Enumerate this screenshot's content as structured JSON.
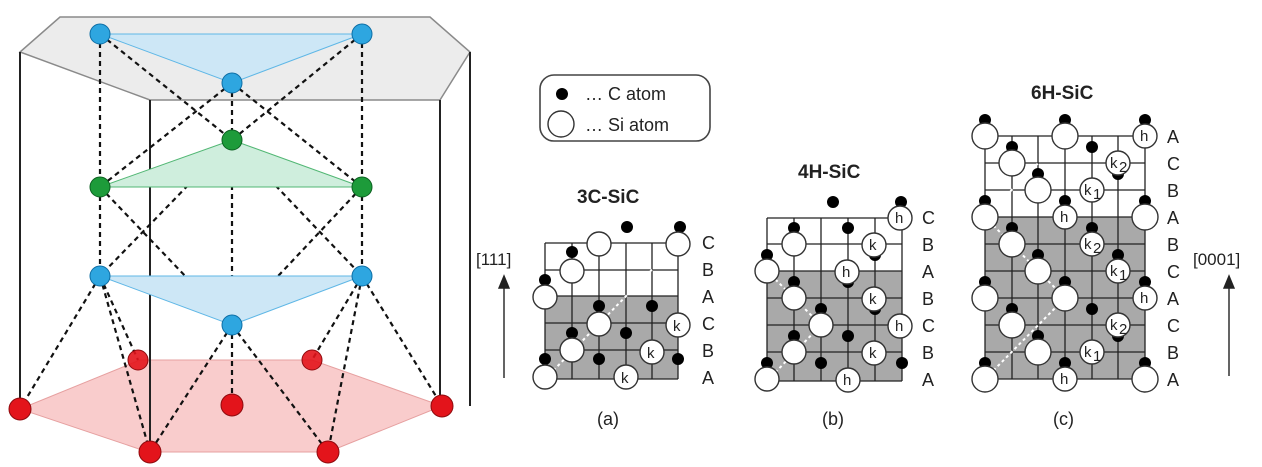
{
  "legend": {
    "c_atom": "… C  atom",
    "si_atom": "… Si  atom"
  },
  "panels": [
    {
      "title": "3C-SiC",
      "caption": "(a)",
      "layers": [
        "C",
        "B",
        "A",
        "C",
        "B",
        "A"
      ],
      "direction": "[111]",
      "labels": [
        "k",
        "k",
        "k"
      ]
    },
    {
      "title": "4H-SiC",
      "caption": "(b)",
      "layers": [
        "C",
        "B",
        "A",
        "B",
        "C",
        "B",
        "A"
      ],
      "labels": [
        "h",
        "k",
        "h",
        "k",
        "h",
        "k",
        "h"
      ]
    },
    {
      "title": "6H-SiC",
      "caption": "(c)",
      "layers": [
        "A",
        "C",
        "B",
        "A",
        "B",
        "C",
        "A",
        "C",
        "B",
        "A"
      ],
      "direction": "[0001]",
      "labels": [
        "h",
        "k",
        "2",
        "k",
        "1",
        "h",
        "k",
        "2",
        "k",
        "1",
        "h",
        "k",
        "2",
        "k",
        "1",
        "h"
      ]
    }
  ],
  "colors": {
    "blue_atom": "#2ea6e0",
    "green_atom": "#1d9b3a",
    "red_atom": "#e3141b",
    "gray_fill": "#a9a9a9"
  }
}
